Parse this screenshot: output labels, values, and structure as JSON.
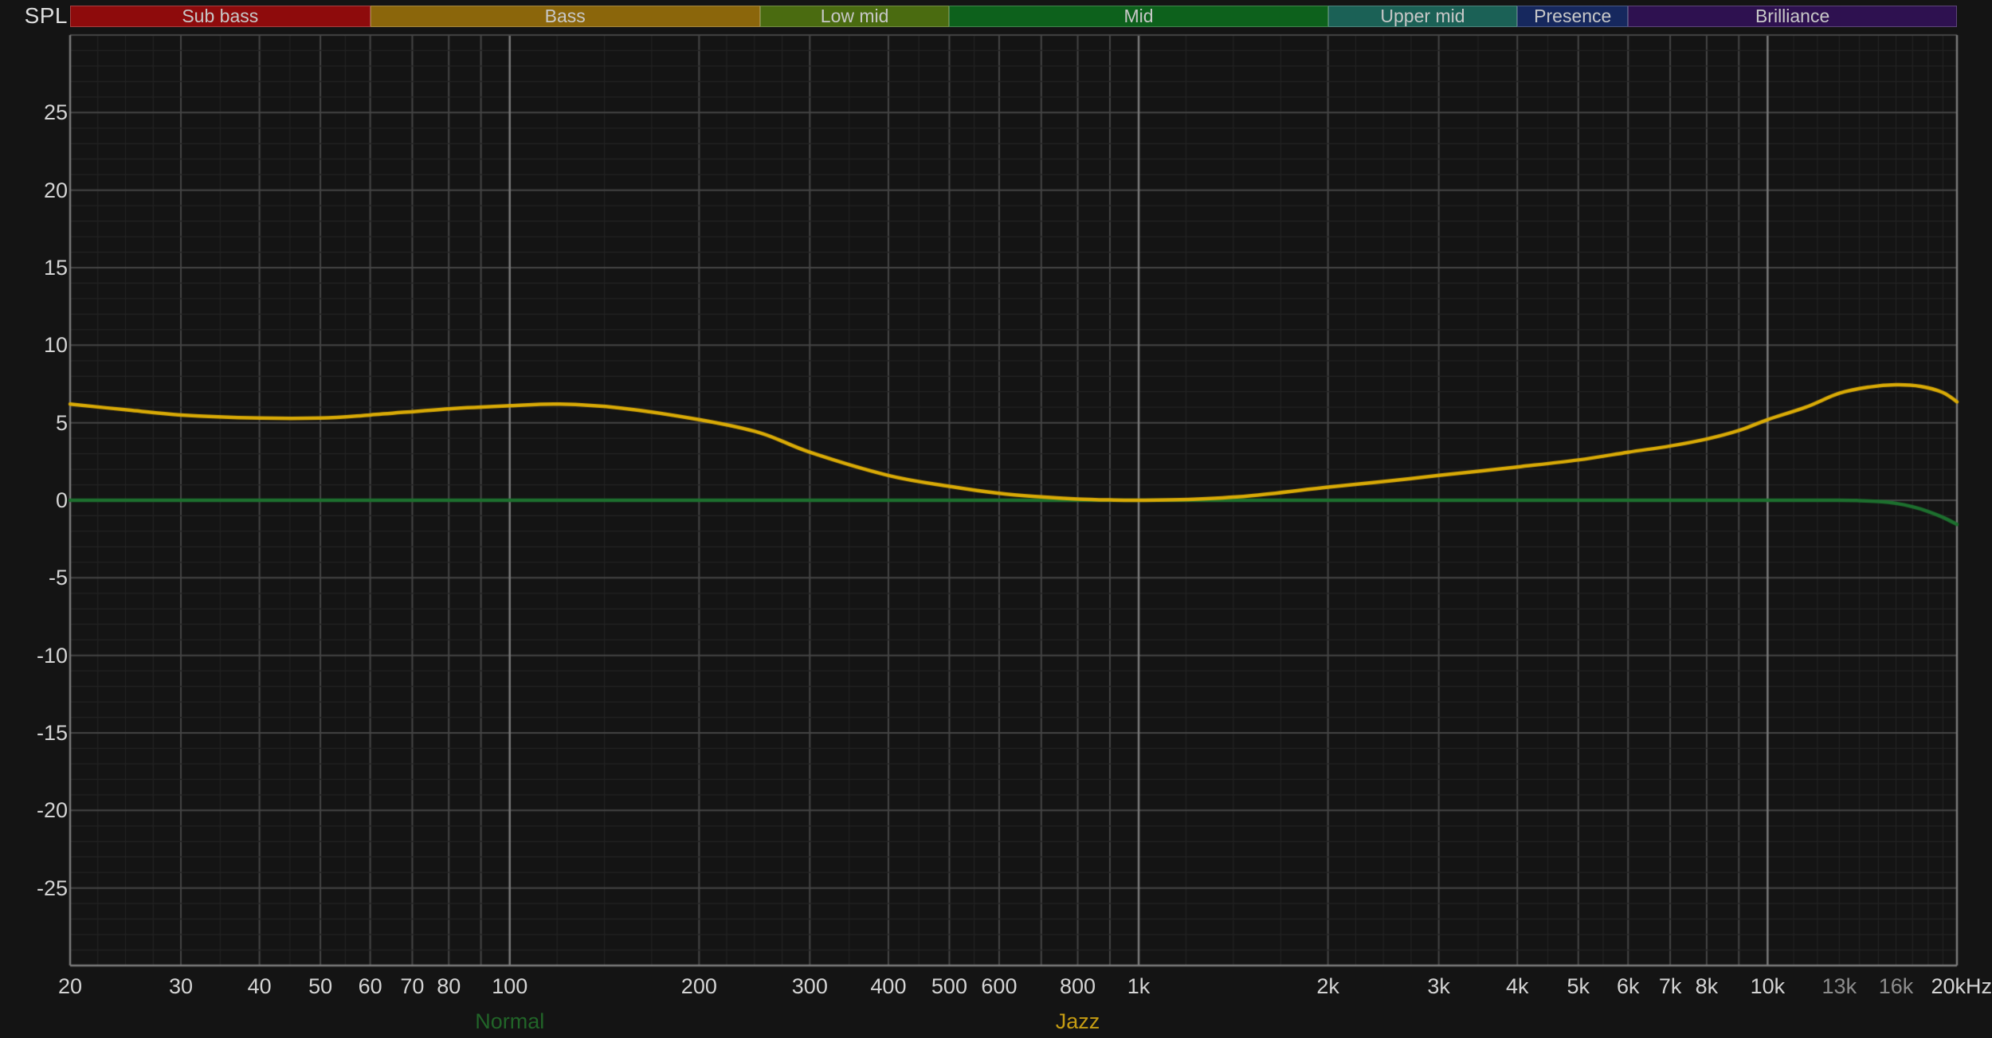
{
  "colors": {
    "background": "#141414",
    "grid_minor": "#232323",
    "grid_major": "#454545",
    "grid_strong": "#7a7a7a",
    "tick_text": "#d4d4d4",
    "tick_text_dim": "#8d8d8d",
    "band_text": "#c8c8c8",
    "spl_text": "#dedede",
    "band_border": "rgba(255,255,255,0.22)"
  },
  "chart_data": {
    "type": "line",
    "x_scale": "log",
    "ylabel": "SPL",
    "xlim": [
      20,
      20000
    ],
    "ylim": [
      -30,
      30
    ],
    "grid": true,
    "y_ticks": [
      25,
      20,
      15,
      10,
      5,
      0,
      -5,
      -10,
      -15,
      -20,
      -25
    ],
    "x_ticks": [
      {
        "f": 20,
        "label": "20"
      },
      {
        "f": 30,
        "label": "30"
      },
      {
        "f": 40,
        "label": "40"
      },
      {
        "f": 50,
        "label": "50"
      },
      {
        "f": 60,
        "label": "60"
      },
      {
        "f": 70,
        "label": "70"
      },
      {
        "f": 80,
        "label": "80"
      },
      {
        "f": 100,
        "label": "100"
      },
      {
        "f": 200,
        "label": "200"
      },
      {
        "f": 300,
        "label": "300"
      },
      {
        "f": 400,
        "label": "400"
      },
      {
        "f": 500,
        "label": "500"
      },
      {
        "f": 600,
        "label": "600"
      },
      {
        "f": 800,
        "label": "800"
      },
      {
        "f": 1000,
        "label": "1k"
      },
      {
        "f": 2000,
        "label": "2k"
      },
      {
        "f": 3000,
        "label": "3k"
      },
      {
        "f": 4000,
        "label": "4k"
      },
      {
        "f": 5000,
        "label": "5k"
      },
      {
        "f": 6000,
        "label": "6k"
      },
      {
        "f": 7000,
        "label": "7k"
      },
      {
        "f": 8000,
        "label": "8k"
      },
      {
        "f": 10000,
        "label": "10k"
      },
      {
        "f": 13000,
        "label": "13k",
        "dim": true
      },
      {
        "f": 16000,
        "label": "16k",
        "dim": true
      },
      {
        "f": 20000,
        "label": "20kHz"
      }
    ],
    "bands": [
      {
        "label": "Sub bass",
        "f_start": 20,
        "f_end": 60,
        "color": "#8e0b0c"
      },
      {
        "label": "Bass",
        "f_start": 60,
        "f_end": 250,
        "color": "#8b660b"
      },
      {
        "label": "Low mid",
        "f_start": 250,
        "f_end": 500,
        "color": "#4a6b10"
      },
      {
        "label": "Mid",
        "f_start": 500,
        "f_end": 2000,
        "color": "#0d611c"
      },
      {
        "label": "Upper mid",
        "f_start": 2000,
        "f_end": 4000,
        "color": "#1b6156"
      },
      {
        "label": "Presence",
        "f_start": 4000,
        "f_end": 6000,
        "color": "#16285e"
      },
      {
        "label": "Brilliance",
        "f_start": 6000,
        "f_end": 20000,
        "color": "#2e1150"
      }
    ],
    "series": [
      {
        "name": "Normal",
        "color": "#1d6f2e",
        "label_color": "#216428",
        "label_x": 100,
        "points": [
          [
            20,
            0
          ],
          [
            50,
            0
          ],
          [
            100,
            0
          ],
          [
            200,
            0
          ],
          [
            500,
            0
          ],
          [
            1000,
            0
          ],
          [
            2000,
            0
          ],
          [
            5000,
            0
          ],
          [
            10000,
            0
          ],
          [
            13000,
            0
          ],
          [
            14000,
            -0.02
          ],
          [
            15000,
            -0.08
          ],
          [
            16000,
            -0.2
          ],
          [
            17000,
            -0.42
          ],
          [
            18000,
            -0.72
          ],
          [
            19000,
            -1.1
          ],
          [
            20000,
            -1.55
          ]
        ]
      },
      {
        "name": "Jazz",
        "color": "#d9aa06",
        "label_color": "#c59c13",
        "label_x": 800,
        "points": [
          [
            20,
            6.2
          ],
          [
            25,
            5.8
          ],
          [
            30,
            5.5
          ],
          [
            40,
            5.3
          ],
          [
            50,
            5.3
          ],
          [
            60,
            5.5
          ],
          [
            80,
            5.9
          ],
          [
            100,
            6.1
          ],
          [
            120,
            6.2
          ],
          [
            150,
            5.95
          ],
          [
            200,
            5.2
          ],
          [
            250,
            4.35
          ],
          [
            300,
            3.1
          ],
          [
            400,
            1.6
          ],
          [
            500,
            0.9
          ],
          [
            600,
            0.45
          ],
          [
            700,
            0.22
          ],
          [
            800,
            0.08
          ],
          [
            900,
            0.02
          ],
          [
            1000,
            0.0
          ],
          [
            1200,
            0.05
          ],
          [
            1500,
            0.28
          ],
          [
            2000,
            0.85
          ],
          [
            2500,
            1.25
          ],
          [
            3000,
            1.6
          ],
          [
            4000,
            2.15
          ],
          [
            5000,
            2.6
          ],
          [
            6000,
            3.1
          ],
          [
            7000,
            3.5
          ],
          [
            8000,
            3.95
          ],
          [
            9000,
            4.5
          ],
          [
            10000,
            5.2
          ],
          [
            11500,
            6.0
          ],
          [
            13000,
            6.9
          ],
          [
            14500,
            7.3
          ],
          [
            16000,
            7.45
          ],
          [
            17500,
            7.35
          ],
          [
            19000,
            6.95
          ],
          [
            20000,
            6.35
          ]
        ]
      }
    ]
  }
}
